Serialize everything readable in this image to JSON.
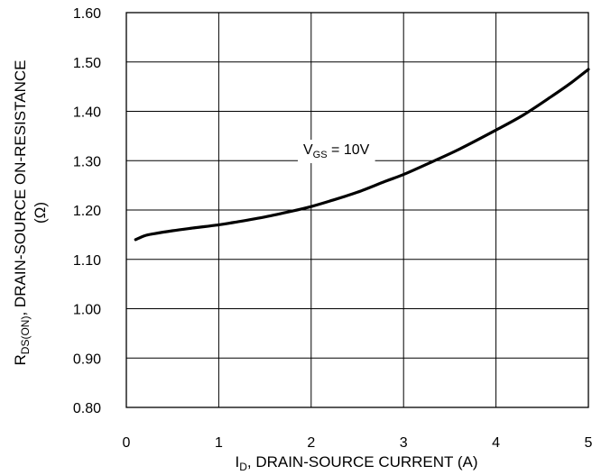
{
  "chart_data": {
    "type": "line",
    "xlabel": {
      "main": "I",
      "sub": "D",
      "rest": ", DRAIN-SOURCE CURRENT (A)"
    },
    "ylabel": {
      "main": "R",
      "sub": "DS(ON)",
      "rest": ", DRAIN-SOURCE ON-RESISTANCE",
      "line2": "(Ω)"
    },
    "xlim": [
      0,
      5
    ],
    "ylim": [
      0.8,
      1.6
    ],
    "x_ticks": [
      "0",
      "1",
      "2",
      "3",
      "4",
      "5"
    ],
    "y_ticks": [
      "0.80",
      "0.90",
      "1.00",
      "1.10",
      "1.20",
      "1.30",
      "1.40",
      "1.50",
      "1.60"
    ],
    "grid": true,
    "annotation": {
      "main": "V",
      "sub": "GS",
      "rest": " = 10V"
    },
    "series": [
      {
        "x": [
          0.1,
          0.2,
          0.3,
          0.5,
          0.7,
          1.0,
          1.2,
          1.5,
          1.8,
          2.0,
          2.2,
          2.5,
          2.8,
          3.0,
          3.3,
          3.6,
          4.0,
          4.3,
          4.6,
          4.8,
          5.0
        ],
        "y": [
          1.14,
          1.148,
          1.152,
          1.158,
          1.163,
          1.17,
          1.176,
          1.186,
          1.198,
          1.207,
          1.218,
          1.236,
          1.258,
          1.272,
          1.297,
          1.323,
          1.362,
          1.393,
          1.43,
          1.456,
          1.485
        ]
      }
    ]
  }
}
